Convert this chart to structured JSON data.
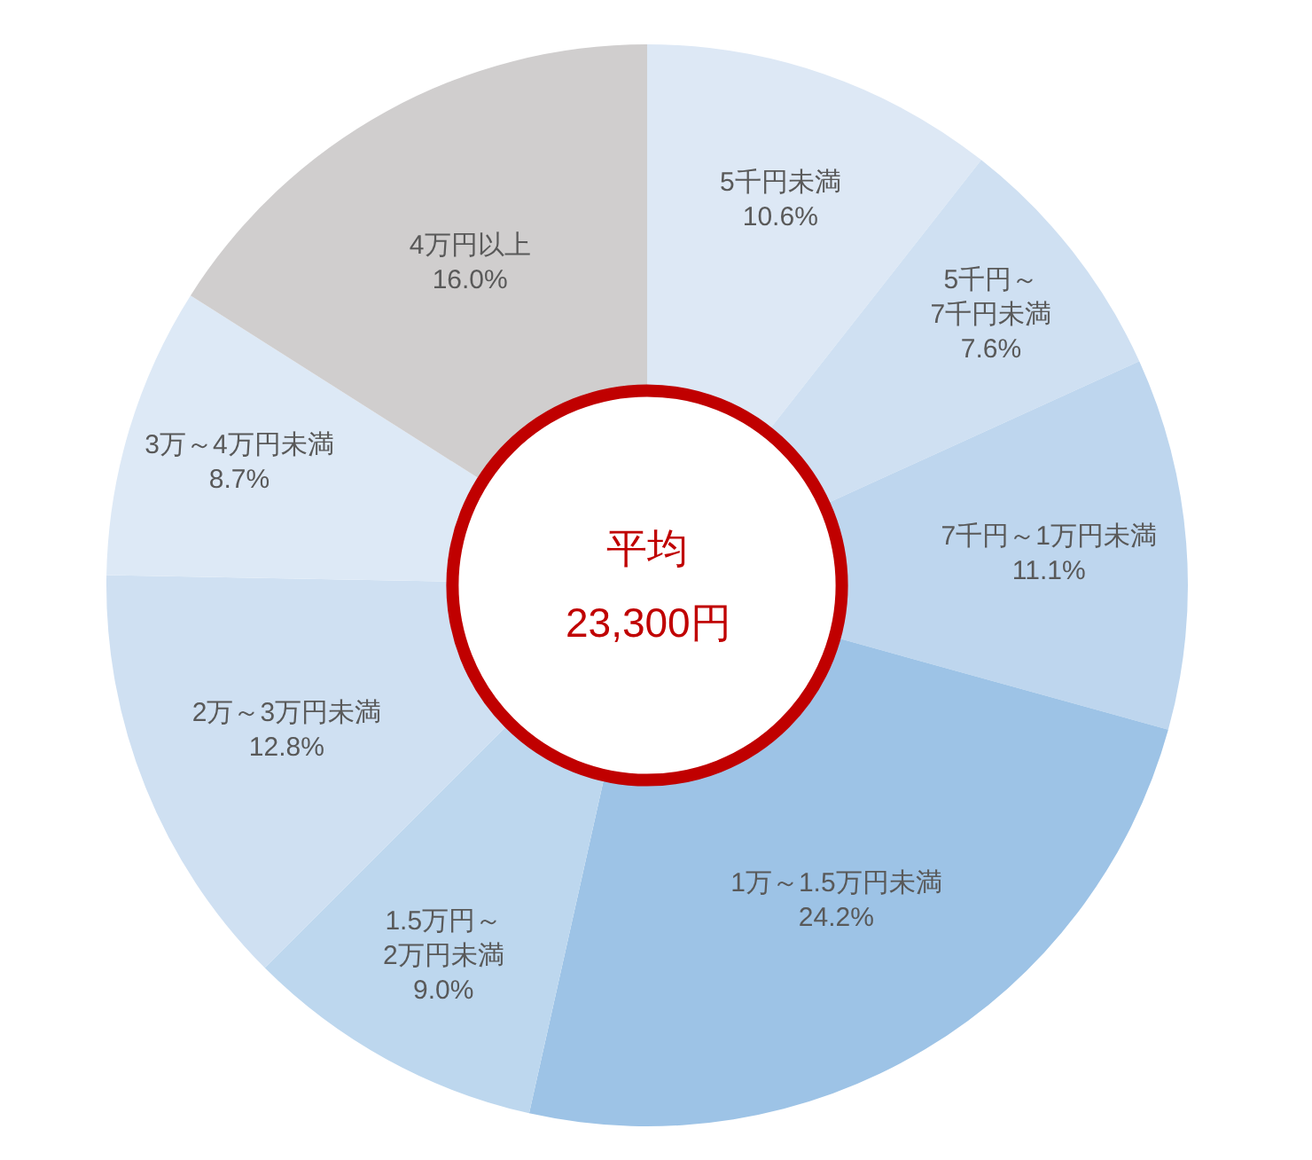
{
  "chart_data": {
    "type": "donut",
    "categories": [
      "5千円未満",
      "5千円～\n7千円未満",
      "7千円～1万円未満",
      "1万～1.5万円未満",
      "1.5万円～\n2万円未満",
      "2万～3万円未満",
      "3万～4万円未満",
      "4万円以上"
    ],
    "values": [
      10.6,
      7.6,
      11.1,
      24.2,
      9.0,
      12.8,
      8.7,
      16.0
    ],
    "value_labels": [
      "10.6%",
      "7.6%",
      "11.1%",
      "24.2%",
      "9.0%",
      "12.8%",
      "8.7%",
      "16.0%"
    ],
    "colors": [
      "#dde8f5",
      "#cfe0f2",
      "#bed6ee",
      "#9dc3e6",
      "#bdd7ee",
      "#cfe0f2",
      "#dde9f6",
      "#d0cece"
    ],
    "annotations": [
      "平均",
      "23,300円"
    ],
    "legend": false
  }
}
